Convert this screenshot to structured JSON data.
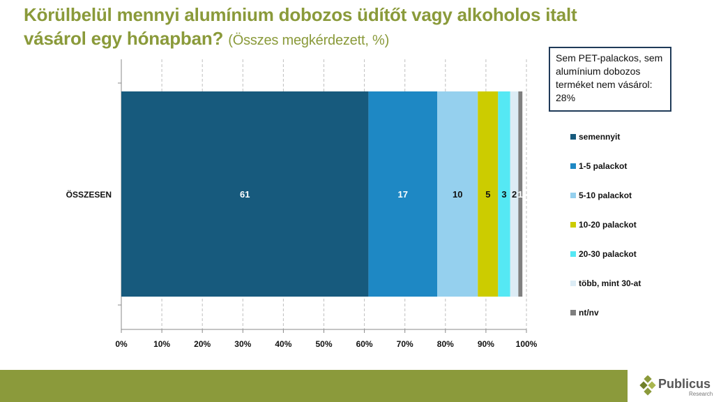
{
  "title": {
    "main": "Körülbelül mennyi alumínium dobozos üdítőt vagy alkoholos italt vásárol egy hónapban?",
    "subtitle": "(Összes megkérdezett, %)"
  },
  "note": "Sem PET-palackos, sem alumínium dobozos terméket nem vásárol: 28%",
  "logo": {
    "name": "Publicus",
    "sub": "Research"
  },
  "colors": {
    "title": "#8a9a3a",
    "footer": "#8b9a3b"
  },
  "chart_data": {
    "type": "bar",
    "orientation": "horizontal",
    "stacked": true,
    "categories": [
      "ÖSSZESEN"
    ],
    "xlim": [
      0,
      100
    ],
    "xticks": [
      "0%",
      "10%",
      "20%",
      "30%",
      "40%",
      "50%",
      "60%",
      "70%",
      "80%",
      "90%",
      "100%"
    ],
    "grid": "vertical dashed",
    "legend_position": "right",
    "series": [
      {
        "name": "semennyit",
        "values": [
          61
        ],
        "label": "61",
        "color": "#175a7d",
        "label_color": "#ffffff"
      },
      {
        "name": "1-5 palackot",
        "values": [
          17
        ],
        "label": "17",
        "color": "#1e88c4",
        "label_color": "#ffffff"
      },
      {
        "name": "5-10 palackot",
        "values": [
          10
        ],
        "label": "10",
        "color": "#95d0ee",
        "label_color": "#111111"
      },
      {
        "name": "10-20 palackot",
        "values": [
          5
        ],
        "label": "5",
        "color": "#cccc00",
        "label_color": "#111111"
      },
      {
        "name": "20-30 palackot",
        "values": [
          3
        ],
        "label": "3",
        "color": "#55e8f4",
        "label_color": "#111111"
      },
      {
        "name": "több, mint 30-at",
        "values": [
          2
        ],
        "label": "2",
        "color": "#dcecf5",
        "label_color": "#111111"
      },
      {
        "name": "nt/nv",
        "values": [
          1
        ],
        "label": "1",
        "color": "#7f7f7f",
        "label_color": "#ffffff"
      }
    ]
  }
}
